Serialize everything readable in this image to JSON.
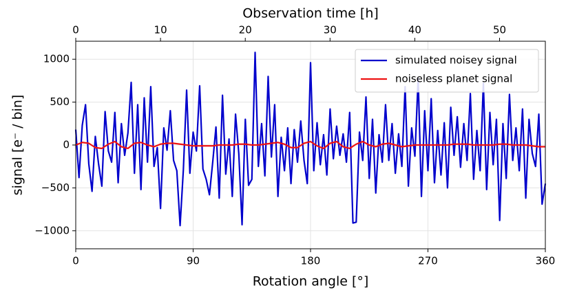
{
  "chart_data": {
    "type": "line",
    "xlabel": "Rotation angle [°]",
    "ylabel": "signal [e⁻ / bin]",
    "x2label": "Observation time [h]",
    "xlim": [
      0,
      360
    ],
    "xticks": [
      0,
      90,
      180,
      270,
      360
    ],
    "x2lim": [
      0,
      55.4
    ],
    "x2ticks": [
      0,
      10,
      20,
      30,
      40,
      50
    ],
    "ylim": [
      -1210,
      1210
    ],
    "yticks": [
      {
        "value": -1000,
        "label": "−1000"
      },
      {
        "value": -500,
        "label": "−500"
      },
      0,
      500,
      1000
    ],
    "grid": true,
    "legend": "upper right",
    "series": [
      {
        "name": "simulated noisey signal",
        "color": "#0000cc",
        "x": [
          0,
          2.5,
          5,
          7.5,
          10,
          12.5,
          15,
          17.5,
          20,
          22.5,
          25,
          27.5,
          30,
          32.5,
          35,
          37.5,
          40,
          42.5,
          45,
          47.5,
          50,
          52.5,
          55,
          57.5,
          60,
          62.5,
          65,
          67.5,
          70,
          72.5,
          75,
          77.5,
          80,
          82.5,
          85,
          87.5,
          90,
          92.5,
          95,
          97.5,
          100,
          102.5,
          105,
          107.5,
          110,
          112.5,
          115,
          117.5,
          120,
          122.5,
          125,
          127.5,
          130,
          132.5,
          135,
          137.5,
          140,
          142.5,
          145,
          147.5,
          150,
          152.5,
          155,
          157.5,
          160,
          162.5,
          165,
          167.5,
          170,
          172.5,
          175,
          177.5,
          180,
          182.5,
          185,
          187.5,
          190,
          192.5,
          195,
          197.5,
          200,
          202.5,
          205,
          207.5,
          210,
          212.5,
          215,
          217.5,
          220,
          222.5,
          225,
          227.5,
          230,
          232.5,
          235,
          237.5,
          240,
          242.5,
          245,
          247.5,
          250,
          252.5,
          255,
          257.5,
          260,
          262.5,
          265,
          267.5,
          270,
          272.5,
          275,
          277.5,
          280,
          282.5,
          285,
          287.5,
          290,
          292.5,
          295,
          297.5,
          300,
          302.5,
          305,
          307.5,
          310,
          312.5,
          315,
          317.5,
          320,
          322.5,
          325,
          327.5,
          330,
          332.5,
          335,
          337.5,
          340,
          342.5,
          345,
          347.5,
          350,
          352.5,
          355,
          357.5,
          360
        ],
        "values": [
          180,
          -380,
          230,
          470,
          -220,
          -540,
          100,
          -220,
          -480,
          390,
          -70,
          -200,
          380,
          -440,
          250,
          -120,
          140,
          730,
          -330,
          470,
          -520,
          550,
          -200,
          680,
          -250,
          -30,
          -740,
          200,
          -60,
          400,
          -180,
          -300,
          -940,
          -290,
          640,
          -330,
          150,
          -70,
          690,
          -280,
          -400,
          -580,
          -200,
          210,
          -620,
          580,
          -340,
          70,
          -600,
          360,
          -100,
          -930,
          300,
          -470,
          -400,
          1080,
          -250,
          250,
          -360,
          800,
          -140,
          470,
          -600,
          90,
          -300,
          200,
          -450,
          180,
          -200,
          280,
          -180,
          -450,
          960,
          -300,
          260,
          -230,
          120,
          -350,
          420,
          -160,
          220,
          -120,
          130,
          -200,
          380,
          -910,
          -900,
          150,
          -180,
          560,
          -390,
          300,
          -560,
          120,
          -200,
          470,
          -180,
          250,
          -330,
          130,
          -250,
          680,
          -480,
          200,
          -130,
          780,
          -600,
          400,
          -300,
          540,
          -440,
          170,
          -350,
          260,
          -500,
          440,
          -120,
          330,
          -260,
          250,
          -180,
          600,
          -400,
          170,
          -300,
          720,
          -520,
          380,
          -230,
          300,
          -880,
          250,
          -390,
          590,
          -180,
          200,
          -300,
          420,
          -620,
          300,
          -100,
          -250,
          360,
          -690,
          -450
        ]
      },
      {
        "name": "noiseless planet signal",
        "color": "#ee1111",
        "x": [
          0,
          5,
          10,
          15,
          20,
          25,
          30,
          35,
          40,
          45,
          50,
          55,
          60,
          65,
          70,
          75,
          80,
          85,
          90,
          95,
          100,
          105,
          110,
          115,
          120,
          125,
          130,
          135,
          140,
          145,
          150,
          155,
          160,
          165,
          170,
          175,
          180,
          185,
          190,
          195,
          200,
          205,
          210,
          215,
          220,
          225,
          230,
          235,
          240,
          245,
          250,
          255,
          260,
          265,
          270,
          275,
          280,
          285,
          290,
          295,
          300,
          305,
          310,
          315,
          320,
          325,
          330,
          335,
          340,
          345,
          350,
          355,
          360
        ],
        "values": [
          0,
          30,
          20,
          -30,
          -40,
          10,
          40,
          -20,
          -40,
          20,
          30,
          0,
          -20,
          10,
          20,
          20,
          10,
          0,
          -10,
          -10,
          -10,
          -10,
          0,
          0,
          0,
          10,
          10,
          0,
          0,
          10,
          20,
          30,
          10,
          -30,
          -30,
          20,
          40,
          -10,
          -40,
          20,
          40,
          -20,
          -40,
          10,
          40,
          0,
          -20,
          10,
          20,
          0,
          -20,
          -10,
          0,
          0,
          0,
          0,
          0,
          0,
          10,
          10,
          10,
          0,
          0,
          0,
          0,
          10,
          10,
          0,
          0,
          0,
          -10,
          -20,
          -20
        ]
      }
    ]
  }
}
